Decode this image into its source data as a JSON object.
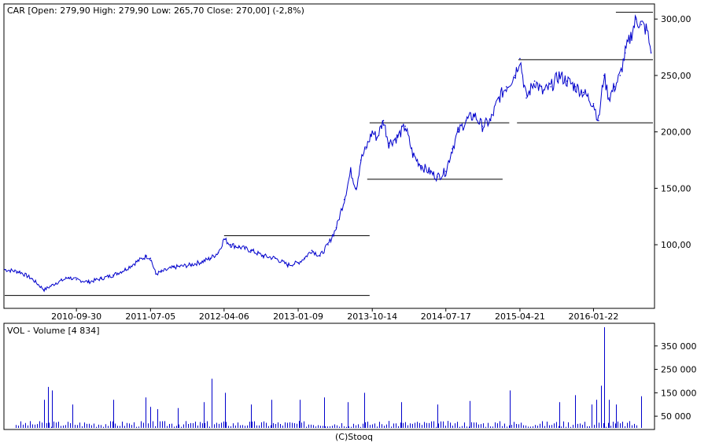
{
  "colors": {
    "series": "#0000cc",
    "frame": "#000000",
    "level_line": "#000000",
    "background": "#ffffff"
  },
  "footer": "(C)Stooq",
  "chart_data": [
    {
      "type": "line",
      "title": "CAR [Open: 279,90  High: 279,90  Low: 265,70  Close: 270,00] (-2,8%)",
      "x_tick_labels": [
        "2010-09-30",
        "2011-07-05",
        "2012-04-06",
        "2013-01-09",
        "2013-10-14",
        "2014-07-17",
        "2015-04-21",
        "2016-01-22"
      ],
      "y_tick_labels": [
        "300,00",
        "250,00",
        "200,00",
        "150,00",
        "100,00"
      ],
      "y_ticks": [
        300,
        250,
        200,
        150,
        100
      ],
      "ylim": [
        45,
        312
      ],
      "xlim": [
        "2010-01-04",
        "2016-09-01"
      ],
      "grid": false,
      "series": [
        {
          "x": [
            "2010-01-04",
            "2010-03-01",
            "2010-04-15",
            "2010-06-01",
            "2010-07-15",
            "2010-09-01",
            "2010-09-30",
            "2010-11-15",
            "2011-01-01",
            "2011-02-15",
            "2011-04-01",
            "2011-05-15",
            "2011-06-20",
            "2011-07-05",
            "2011-07-25",
            "2011-08-15",
            "2011-10-01",
            "2011-12-01",
            "2012-01-15",
            "2012-02-15",
            "2012-03-15",
            "2012-04-06",
            "2012-05-01",
            "2012-06-01",
            "2012-07-15",
            "2012-09-01",
            "2012-10-15",
            "2012-12-01",
            "2013-01-09",
            "2013-02-01",
            "2013-03-01",
            "2013-04-01",
            "2013-05-01",
            "2013-06-01",
            "2013-07-01",
            "2013-07-25",
            "2013-08-15",
            "2013-09-01",
            "2013-09-20",
            "2013-10-14",
            "2013-11-01",
            "2013-11-25",
            "2013-12-15",
            "2014-01-15",
            "2014-02-15",
            "2014-03-15",
            "2014-04-15",
            "2014-05-15",
            "2014-06-15",
            "2014-07-17",
            "2014-08-10",
            "2014-09-01",
            "2014-10-01",
            "2014-11-01",
            "2014-12-01",
            "2015-01-01",
            "2015-02-01",
            "2015-03-01",
            "2015-04-01",
            "2015-04-21",
            "2015-05-15",
            "2015-06-15",
            "2015-07-15",
            "2015-08-15",
            "2015-09-15",
            "2015-10-15",
            "2015-11-15",
            "2015-12-15",
            "2016-01-22",
            "2016-02-10",
            "2016-03-01",
            "2016-03-20",
            "2016-04-10",
            "2016-05-01",
            "2016-05-20",
            "2016-06-10",
            "2016-06-30",
            "2016-07-20",
            "2016-08-10",
            "2016-08-25"
          ],
          "y": [
            78,
            76,
            70,
            60,
            66,
            71,
            69,
            67,
            70,
            73,
            78,
            85,
            90,
            88,
            74,
            76,
            80,
            82,
            85,
            88,
            93,
            105,
            100,
            98,
            95,
            90,
            88,
            82,
            84,
            88,
            95,
            90,
            100,
            115,
            140,
            165,
            150,
            175,
            185,
            200,
            195,
            210,
            190,
            195,
            205,
            180,
            170,
            165,
            160,
            165,
            185,
            200,
            210,
            215,
            205,
            210,
            230,
            240,
            250,
            265,
            230,
            245,
            235,
            240,
            250,
            245,
            240,
            235,
            225,
            210,
            250,
            230,
            240,
            250,
            270,
            285,
            300,
            295,
            290,
            270
          ]
        }
      ],
      "level_lines": [
        {
          "y": 55,
          "x_from": "2010-01-04",
          "x_to": "2013-10-04"
        },
        {
          "y": 108,
          "x_from": "2012-04-06",
          "x_to": "2013-10-04"
        },
        {
          "y": 158,
          "x_from": "2013-09-25",
          "x_to": "2015-02-15"
        },
        {
          "y": 208,
          "x_from": "2013-10-04",
          "x_to": "2015-03-12"
        },
        {
          "y": 208,
          "x_from": "2015-04-10",
          "x_to": "2016-09-01"
        },
        {
          "y": 264,
          "x_from": "2015-04-15",
          "x_to": "2016-09-01"
        },
        {
          "y": 306,
          "x_from": "2016-04-15",
          "x_to": "2016-09-01"
        }
      ]
    },
    {
      "type": "bar",
      "title": "VOL - Volume [4 834]",
      "y_tick_labels": [
        "350 000",
        "250 000",
        "150 000",
        "50 000"
      ],
      "y_ticks": [
        350000,
        250000,
        150000,
        50000
      ],
      "ylim": [
        0,
        440000
      ],
      "grid": false,
      "series": [
        {
          "x": [
            "2010-06-01",
            "2010-06-15",
            "2010-07-01",
            "2010-09-15",
            "2011-02-15",
            "2011-06-15",
            "2011-07-05",
            "2011-08-01",
            "2011-10-15",
            "2012-01-20",
            "2012-02-20",
            "2012-04-10",
            "2012-07-15",
            "2012-10-01",
            "2013-01-15",
            "2013-04-15",
            "2013-07-15",
            "2013-09-15",
            "2014-02-01",
            "2014-06-15",
            "2014-10-15",
            "2015-03-15",
            "2015-09-15",
            "2015-11-15",
            "2016-01-15",
            "2016-02-01",
            "2016-02-20",
            "2016-03-01",
            "2016-03-20",
            "2016-04-15",
            "2016-07-20"
          ],
          "y": [
            120000,
            175000,
            160000,
            100000,
            120000,
            130000,
            90000,
            80000,
            85000,
            110000,
            210000,
            150000,
            100000,
            120000,
            120000,
            130000,
            110000,
            150000,
            110000,
            100000,
            115000,
            160000,
            110000,
            140000,
            100000,
            120000,
            180000,
            430000,
            120000,
            100000,
            135000
          ]
        }
      ],
      "xlim": [
        "2010-01-04",
        "2016-09-01"
      ]
    }
  ]
}
